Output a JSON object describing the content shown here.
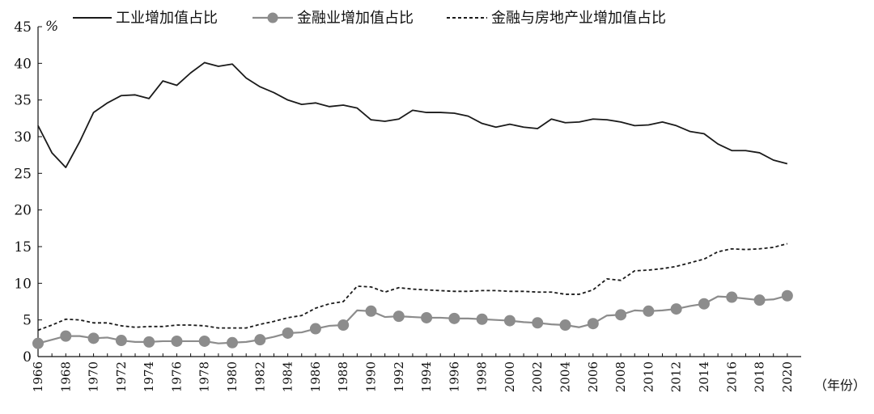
{
  "chart_data": {
    "type": "line",
    "title": "",
    "ylabel": "%",
    "xlabel": "（年份）",
    "ylim": [
      0,
      45
    ],
    "xlim": [
      1966,
      2021
    ],
    "yticks": [
      0,
      5,
      10,
      15,
      20,
      25,
      30,
      35,
      40,
      45
    ],
    "xticks": [
      1966,
      1968,
      1970,
      1972,
      1974,
      1976,
      1978,
      1980,
      1982,
      1984,
      1986,
      1988,
      1990,
      1992,
      1994,
      1996,
      1998,
      2000,
      2002,
      2004,
      2006,
      2008,
      2010,
      2012,
      2014,
      2016,
      2018,
      2020
    ],
    "grid": false,
    "legend_position": "top",
    "x": [
      1966,
      1967,
      1968,
      1969,
      1970,
      1971,
      1972,
      1973,
      1974,
      1975,
      1976,
      1977,
      1978,
      1979,
      1980,
      1981,
      1982,
      1983,
      1984,
      1985,
      1986,
      1987,
      1988,
      1989,
      1990,
      1991,
      1992,
      1993,
      1994,
      1995,
      1996,
      1997,
      1998,
      1999,
      2000,
      2001,
      2002,
      2003,
      2004,
      2005,
      2006,
      2007,
      2008,
      2009,
      2010,
      2011,
      2012,
      2013,
      2014,
      2015,
      2016,
      2017,
      2018,
      2019,
      2020
    ],
    "series": [
      {
        "name": "工业增加值占比",
        "style": "solid",
        "color": "#1a1a1a",
        "markers": false,
        "values": [
          31.5,
          27.8,
          25.8,
          29.3,
          33.3,
          34.6,
          35.6,
          35.7,
          35.2,
          37.6,
          37.0,
          38.7,
          40.1,
          39.6,
          39.9,
          38.0,
          36.8,
          36.0,
          35.0,
          34.4,
          34.6,
          34.1,
          34.3,
          33.9,
          32.3,
          32.1,
          32.4,
          33.6,
          33.3,
          33.3,
          33.2,
          32.8,
          31.8,
          31.3,
          31.7,
          31.3,
          31.1,
          32.4,
          31.9,
          32.0,
          32.4,
          32.3,
          32.0,
          31.5,
          31.6,
          32.0,
          31.5,
          30.7,
          30.4,
          29.0,
          28.1,
          28.1,
          27.8,
          26.8,
          26.3
        ]
      },
      {
        "name": "金融业增加值占比",
        "style": "solid",
        "color": "#8c8c8c",
        "markers": true,
        "values": [
          1.8,
          2.3,
          2.8,
          2.8,
          2.5,
          2.6,
          2.2,
          2.0,
          2.0,
          2.1,
          2.1,
          2.1,
          2.1,
          1.8,
          1.9,
          2.0,
          2.3,
          2.7,
          3.2,
          3.3,
          3.8,
          4.2,
          4.3,
          6.3,
          6.2,
          5.4,
          5.5,
          5.4,
          5.3,
          5.3,
          5.2,
          5.2,
          5.1,
          5.0,
          4.9,
          4.7,
          4.6,
          4.4,
          4.3,
          4.0,
          4.5,
          5.6,
          5.7,
          6.3,
          6.2,
          6.3,
          6.5,
          6.9,
          7.2,
          8.2,
          8.1,
          7.9,
          7.7,
          7.8,
          8.3
        ]
      },
      {
        "name": "金融与房地产业增加值占比",
        "style": "dashed",
        "color": "#1a1a1a",
        "markers": false,
        "values": [
          3.6,
          4.3,
          5.1,
          5.0,
          4.6,
          4.6,
          4.2,
          4.0,
          4.1,
          4.1,
          4.3,
          4.3,
          4.2,
          3.9,
          3.9,
          3.9,
          4.4,
          4.8,
          5.3,
          5.6,
          6.6,
          7.2,
          7.5,
          9.6,
          9.5,
          8.8,
          9.4,
          9.2,
          9.1,
          9.0,
          8.9,
          8.9,
          9.0,
          9.0,
          8.9,
          8.9,
          8.8,
          8.8,
          8.5,
          8.5,
          9.1,
          10.6,
          10.4,
          11.7,
          11.8,
          12.0,
          12.3,
          12.8,
          13.3,
          14.3,
          14.7,
          14.6,
          14.7,
          14.9,
          15.4
        ]
      }
    ]
  }
}
